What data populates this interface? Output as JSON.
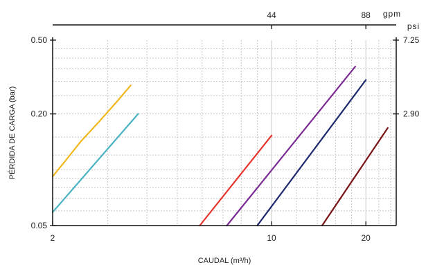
{
  "chart_data": {
    "type": "line",
    "scale": "log-log",
    "grid": true,
    "legend": "none",
    "x": {
      "label": "CAUDAL (m³/h)",
      "range": [
        2,
        25
      ],
      "ticks": [
        2,
        10,
        20
      ],
      "tick_labels": [
        "2",
        "10",
        "20"
      ]
    },
    "x_top": {
      "unit": "gpm",
      "ticks": [
        10,
        20
      ],
      "tick_labels": [
        "44",
        "88"
      ]
    },
    "y": {
      "label": "PÉRDIDA DE CARGA (bar)",
      "range": [
        0.05,
        0.5
      ],
      "ticks": [
        0.05,
        0.2,
        0.5
      ],
      "tick_labels": [
        "0.05",
        "0.20",
        "0.50"
      ]
    },
    "y_right": {
      "unit": "psi",
      "ticks": [
        0.2,
        0.5
      ],
      "tick_labels": [
        "2.90",
        "7.25"
      ]
    },
    "series": [
      {
        "color": "#f0b81c",
        "points": [
          [
            2,
            0.092
          ],
          [
            2.2,
            0.112
          ],
          [
            2.45,
            0.141
          ],
          [
            2.8,
            0.18
          ],
          [
            3.2,
            0.232
          ],
          [
            3.55,
            0.285
          ]
        ]
      },
      {
        "color": "#4bb3c3",
        "points": [
          [
            2,
            0.059
          ],
          [
            3.75,
            0.2
          ]
        ]
      },
      {
        "color": "#e8332c",
        "points": [
          [
            5.9,
            0.05
          ],
          [
            10,
            0.153
          ]
        ]
      },
      {
        "color": "#7b2c94",
        "points": [
          [
            7.2,
            0.05
          ],
          [
            18.5,
            0.36
          ]
        ]
      },
      {
        "color": "#1f2a6e",
        "points": [
          [
            9,
            0.05
          ],
          [
            20,
            0.305
          ]
        ]
      },
      {
        "color": "#7a1414",
        "points": [
          [
            14.5,
            0.05
          ],
          [
            23.5,
            0.168
          ]
        ]
      }
    ]
  }
}
